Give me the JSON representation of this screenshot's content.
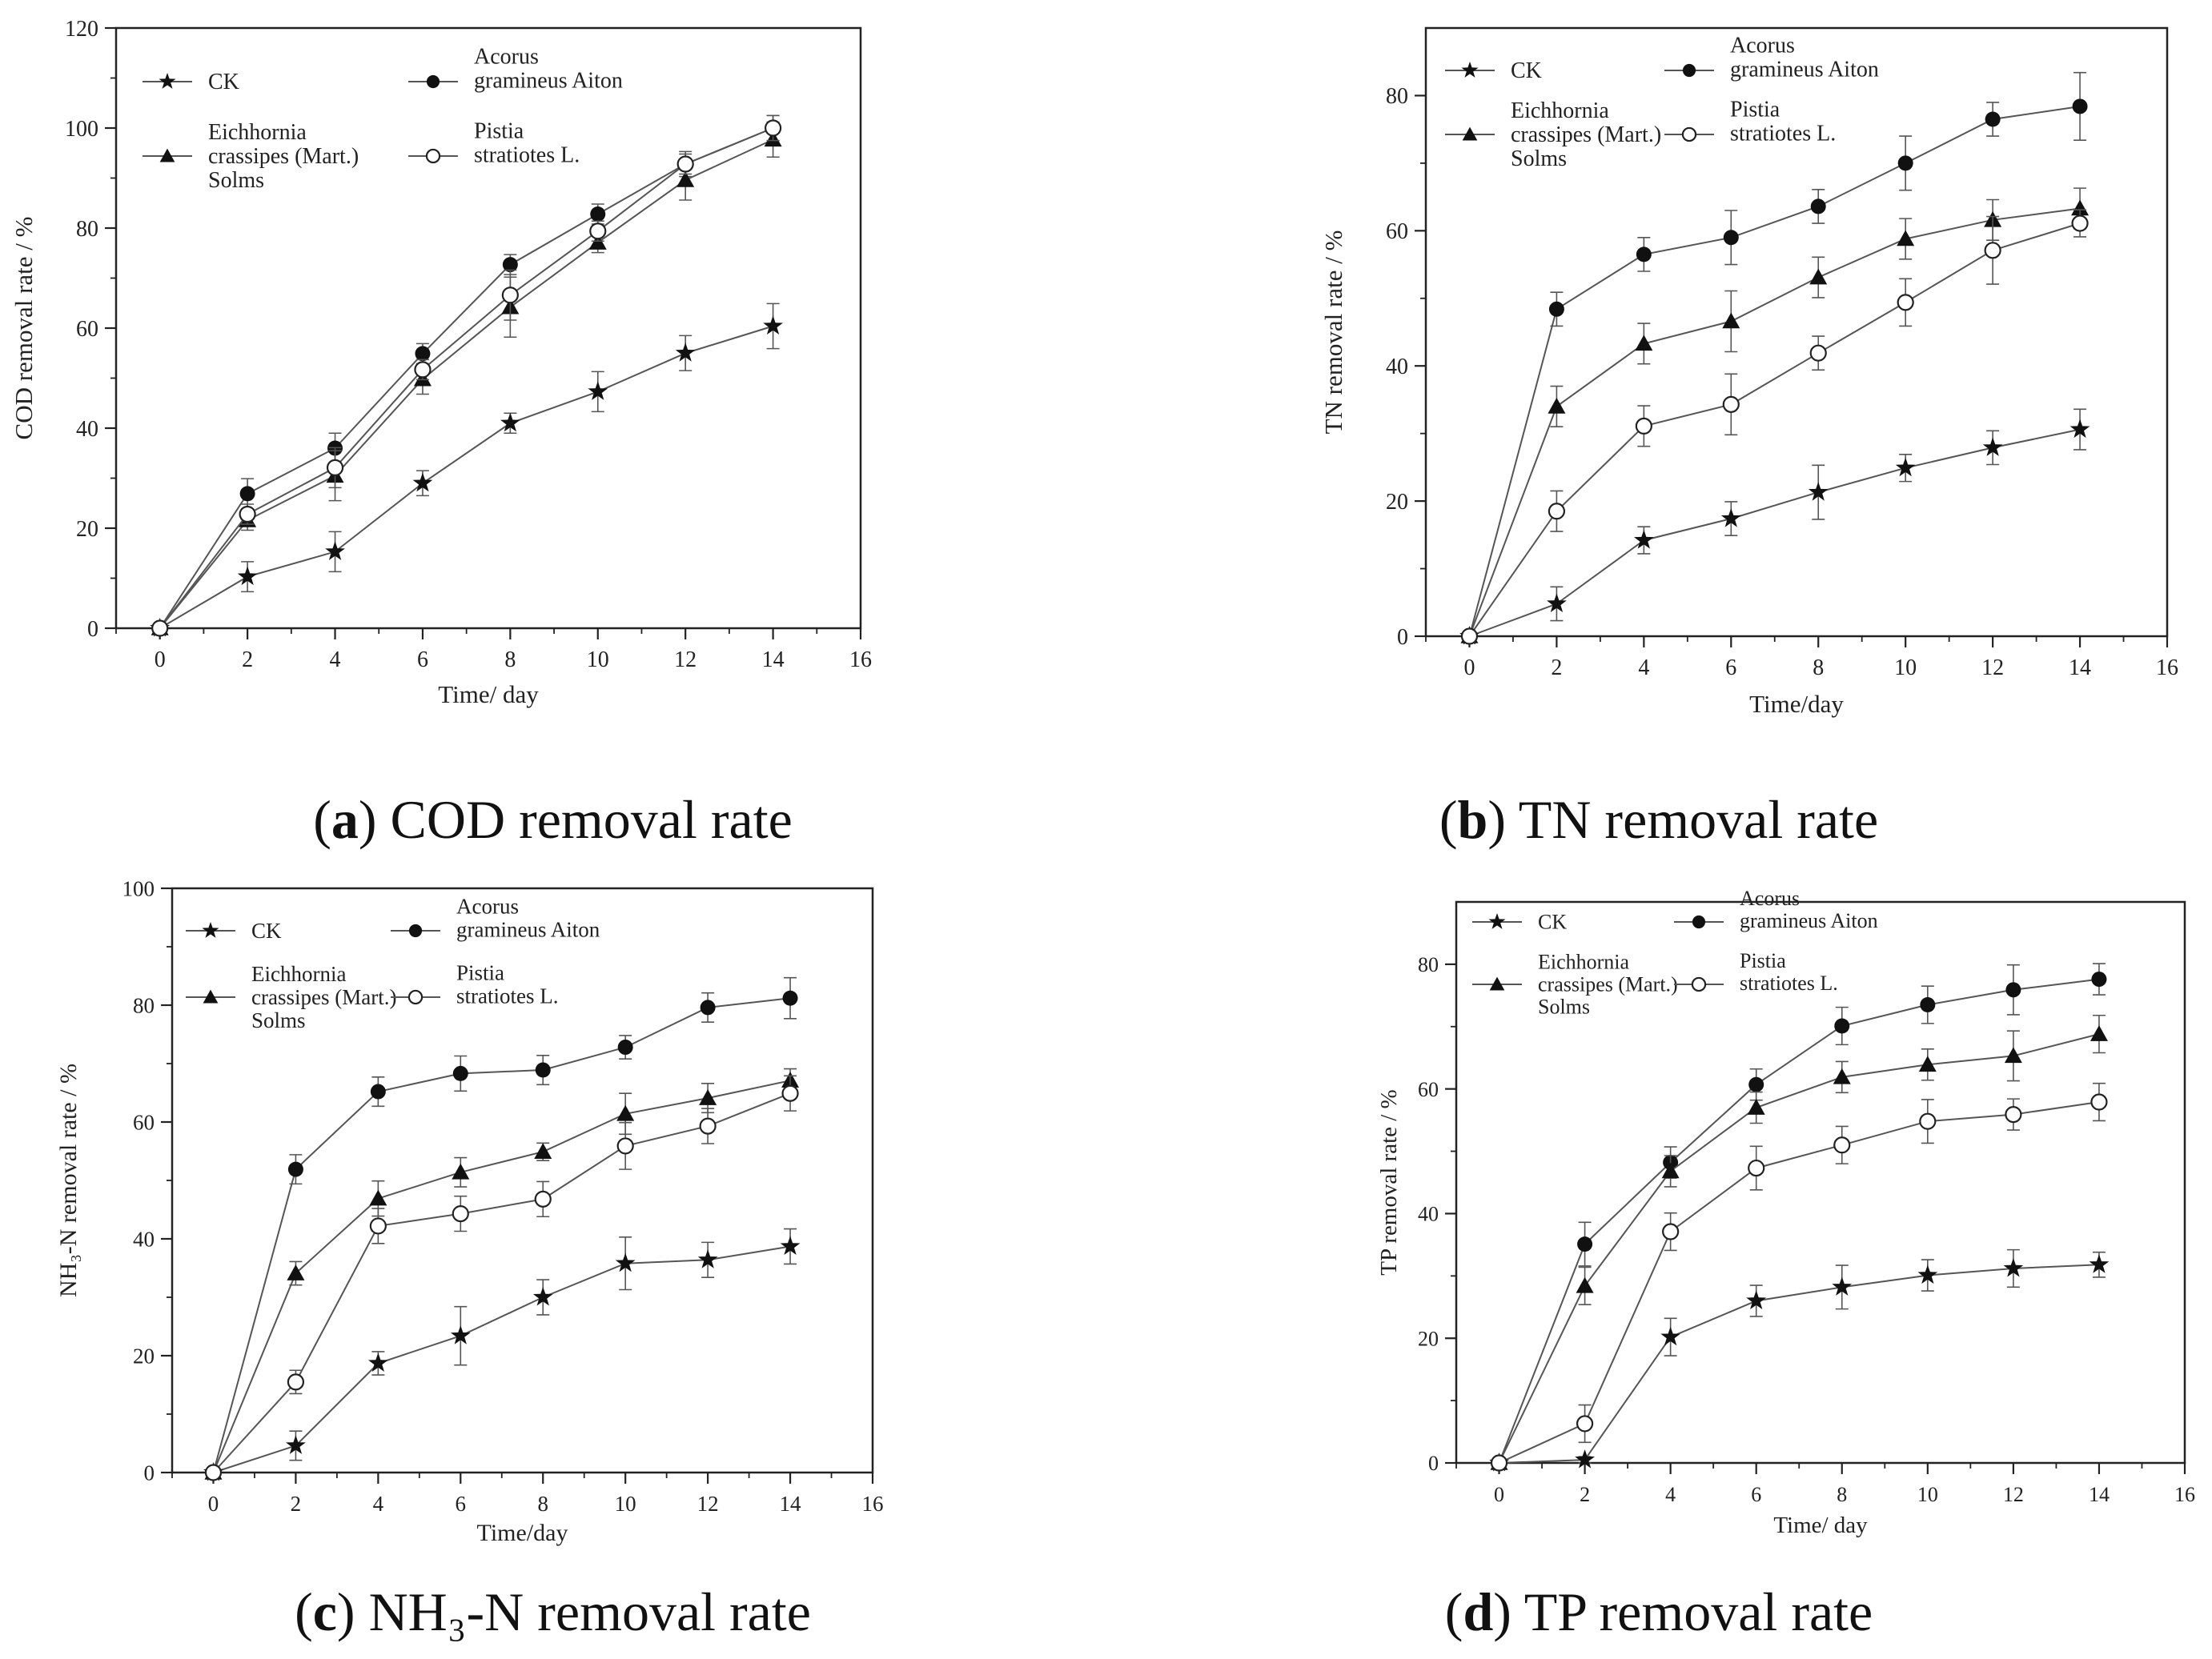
{
  "chart_data": [
    {
      "id": "a",
      "type": "line",
      "caption_letter": "a",
      "caption_text": "COD removal rate",
      "xlabel": "Time/ day",
      "ylabel": "COD removal rate / %",
      "xlim": [
        -1,
        16
      ],
      "ylim": [
        0,
        120
      ],
      "xticks": [
        0,
        2,
        4,
        6,
        8,
        10,
        12,
        14,
        16
      ],
      "yticks": [
        0,
        20,
        40,
        60,
        80,
        100,
        120
      ],
      "legend_position": "top-left",
      "series": [
        {
          "name": "CK",
          "lines": [
            "CK"
          ],
          "marker": "star",
          "x": [
            0,
            2,
            4,
            6,
            8,
            10,
            12,
            14
          ],
          "y": [
            0,
            10.3,
            15.3,
            29,
            41,
            47.3,
            55,
            60.4
          ],
          "err": [
            0,
            3,
            4,
            2.5,
            2,
            4,
            3.5,
            4.5
          ]
        },
        {
          "name": "Acorus gramineus Aiton",
          "lines": [
            "Acorus",
            "gramineus Aiton"
          ],
          "marker": "filled-circle",
          "x": [
            0,
            2,
            4,
            6,
            8,
            10,
            12,
            14
          ],
          "y": [
            0,
            26.9,
            36,
            54.9,
            72.7,
            82.8,
            92.8,
            100
          ],
          "err": [
            0,
            3,
            3,
            2,
            2,
            2,
            2.5,
            2.5
          ]
        },
        {
          "name": "Eichhornia crassipes (Mart.) Solms",
          "lines": [
            "Eichhornia",
            "crassipes (Mart.)",
            "Solms"
          ],
          "marker": "filled-triangle",
          "x": [
            0,
            2,
            4,
            6,
            8,
            10,
            12,
            14
          ],
          "y": [
            0,
            21.6,
            30.5,
            49.8,
            64.2,
            77.1,
            89.6,
            97.7
          ],
          "err": [
            0,
            2,
            5,
            3,
            6,
            2,
            4,
            3.5
          ]
        },
        {
          "name": "Pistia stratiotes L.",
          "lines": [
            "Pistia",
            "stratiotes L."
          ],
          "marker": "open-circle",
          "x": [
            0,
            2,
            4,
            6,
            8,
            10,
            12,
            14
          ],
          "y": [
            0,
            22.8,
            32.1,
            51.7,
            66.6,
            79.4,
            92.8,
            100
          ],
          "err": [
            0,
            2,
            4,
            2,
            5,
            2,
            2,
            2.5
          ]
        }
      ]
    },
    {
      "id": "b",
      "type": "line",
      "caption_letter": "b",
      "caption_text": "TN removal rate",
      "xlabel": "Time/day",
      "ylabel": "TN removal rate / %",
      "xlim": [
        -1,
        16
      ],
      "ylim": [
        0,
        90
      ],
      "xticks": [
        0,
        2,
        4,
        6,
        8,
        10,
        12,
        14,
        16
      ],
      "yticks": [
        0,
        20,
        40,
        60,
        80
      ],
      "legend_position": "top-left",
      "series": [
        {
          "name": "CK",
          "lines": [
            "CK"
          ],
          "marker": "star",
          "x": [
            0,
            2,
            4,
            6,
            8,
            10,
            12,
            14
          ],
          "y": [
            0,
            4.8,
            14.2,
            17.4,
            21.3,
            24.9,
            27.9,
            30.6
          ],
          "err": [
            0,
            2.5,
            2,
            2.5,
            4,
            2,
            2.5,
            3
          ]
        },
        {
          "name": "Acorus gramineus Aiton",
          "lines": [
            "Acorus",
            "gramineus Aiton"
          ],
          "marker": "filled-circle",
          "x": [
            0,
            2,
            4,
            6,
            8,
            10,
            12,
            14
          ],
          "y": [
            0,
            48.4,
            56.5,
            59,
            63.6,
            70,
            76.5,
            78.4
          ],
          "err": [
            0,
            2.5,
            2.5,
            4,
            2.5,
            4,
            2.5,
            5
          ]
        },
        {
          "name": "Eichhornia crassipes (Mart.) Solms",
          "lines": [
            "Eichhornia",
            "crassipes (Mart.)",
            "Solms"
          ],
          "marker": "filled-triangle",
          "x": [
            0,
            2,
            4,
            6,
            8,
            10,
            12,
            14
          ],
          "y": [
            0,
            34,
            43.3,
            46.6,
            53.1,
            58.8,
            61.6,
            63.3
          ],
          "err": [
            0,
            3,
            3,
            4.5,
            3,
            3,
            3,
            3
          ]
        },
        {
          "name": "Pistia stratiotes L.",
          "lines": [
            "Pistia",
            "stratiotes L."
          ],
          "marker": "open-circle",
          "x": [
            0,
            2,
            4,
            6,
            8,
            10,
            12,
            14
          ],
          "y": [
            0,
            18.5,
            31.1,
            34.3,
            41.9,
            49.4,
            57.1,
            61.1
          ],
          "err": [
            0,
            3,
            3,
            4.5,
            2.5,
            3.5,
            5,
            2
          ]
        }
      ]
    },
    {
      "id": "c",
      "type": "line",
      "caption_letter": "c",
      "caption_text": "NH3-N removal rate",
      "caption_text_display": "NH₃-N removal rate",
      "xlabel": "Time/day",
      "ylabel": "NH3-N removal rate / %",
      "ylabel_display": "NH₃-N removal rate / %",
      "xlim": [
        -1,
        16
      ],
      "ylim": [
        0,
        100
      ],
      "xticks": [
        0,
        2,
        4,
        6,
        8,
        10,
        12,
        14,
        16
      ],
      "yticks": [
        0,
        20,
        40,
        60,
        80,
        100
      ],
      "legend_position": "top-left",
      "series": [
        {
          "name": "CK",
          "lines": [
            "CK"
          ],
          "marker": "star",
          "x": [
            0,
            2,
            4,
            6,
            8,
            10,
            12,
            14
          ],
          "y": [
            0,
            4.6,
            18.7,
            23.4,
            30,
            35.8,
            36.4,
            38.7
          ],
          "err": [
            0,
            2.5,
            2,
            5,
            3,
            4.5,
            3,
            3
          ]
        },
        {
          "name": "Acorus gramineus Aiton",
          "lines": [
            "Acorus",
            "gramineus Aiton"
          ],
          "marker": "filled-circle",
          "x": [
            0,
            2,
            4,
            6,
            8,
            10,
            12,
            14
          ],
          "y": [
            0,
            51.9,
            65.2,
            68.3,
            68.9,
            72.8,
            79.6,
            81.2
          ],
          "err": [
            0,
            2.5,
            2.5,
            3,
            2.5,
            2,
            2.5,
            3.5
          ]
        },
        {
          "name": "Eichhornia crassipes (Mart.) Solms",
          "lines": [
            "Eichhornia",
            "crassipes (Mart.)",
            "Solms"
          ],
          "marker": "filled-triangle",
          "x": [
            0,
            2,
            4,
            6,
            8,
            10,
            12,
            14
          ],
          "y": [
            0,
            34.1,
            46.9,
            51.4,
            54.9,
            61.4,
            64.1,
            67.1
          ],
          "err": [
            0,
            2,
            3,
            2.5,
            1.5,
            3.5,
            2.5,
            2
          ]
        },
        {
          "name": "Pistia stratiotes L.",
          "lines": [
            "Pistia",
            "stratiotes L."
          ],
          "marker": "open-circle",
          "x": [
            0,
            2,
            4,
            6,
            8,
            10,
            12,
            14
          ],
          "y": [
            0,
            15.5,
            42.2,
            44.3,
            46.8,
            55.9,
            59.3,
            64.9
          ],
          "err": [
            0,
            2,
            3,
            3,
            3,
            4,
            3,
            3
          ]
        }
      ]
    },
    {
      "id": "d",
      "type": "line",
      "caption_letter": "d",
      "caption_text": "TP removal rate",
      "xlabel": "Time/ day",
      "ylabel": "TP removal rate / %",
      "xlim": [
        -1,
        16
      ],
      "ylim": [
        0,
        90
      ],
      "xticks": [
        0,
        2,
        4,
        6,
        8,
        10,
        12,
        14,
        16
      ],
      "yticks": [
        0,
        20,
        40,
        60,
        80
      ],
      "legend_position": "top-left",
      "series": [
        {
          "name": "CK",
          "lines": [
            "CK"
          ],
          "marker": "star",
          "x": [
            0,
            2,
            4,
            6,
            8,
            10,
            12,
            14
          ],
          "y": [
            0,
            0.5,
            20.2,
            26,
            28.2,
            30.1,
            31.2,
            31.8
          ],
          "err": [
            0,
            0.5,
            3,
            2.5,
            3.5,
            2.5,
            3,
            2
          ]
        },
        {
          "name": "Acorus gramineus Aiton",
          "lines": [
            "Acorus",
            "gramineus Aiton"
          ],
          "marker": "filled-circle",
          "x": [
            0,
            2,
            4,
            6,
            8,
            10,
            12,
            14
          ],
          "y": [
            0,
            35.1,
            48.2,
            60.7,
            70.1,
            73.5,
            75.9,
            77.6
          ],
          "err": [
            0,
            3.5,
            2.5,
            2.5,
            3,
            3,
            4,
            2.5
          ]
        },
        {
          "name": "Eichhornia crassipes (Mart.) Solms",
          "lines": [
            "Eichhornia",
            "crassipes (Mart.)",
            "Solms"
          ],
          "marker": "filled-triangle",
          "x": [
            0,
            2,
            4,
            6,
            8,
            10,
            12,
            14
          ],
          "y": [
            0,
            28.4,
            46.8,
            57,
            61.9,
            63.9,
            65.3,
            68.8
          ],
          "err": [
            0,
            3,
            2.5,
            2.5,
            2.5,
            2.5,
            4,
            3
          ]
        },
        {
          "name": "Pistia stratiotes L.",
          "lines": [
            "Pistia",
            "stratiotes L."
          ],
          "marker": "open-circle",
          "x": [
            0,
            2,
            4,
            6,
            8,
            10,
            12,
            14
          ],
          "y": [
            0,
            6.3,
            37.1,
            47.3,
            51,
            54.8,
            55.9,
            57.9
          ],
          "err": [
            0,
            3,
            3,
            3.5,
            3,
            3.5,
            2.5,
            3
          ]
        }
      ]
    }
  ]
}
